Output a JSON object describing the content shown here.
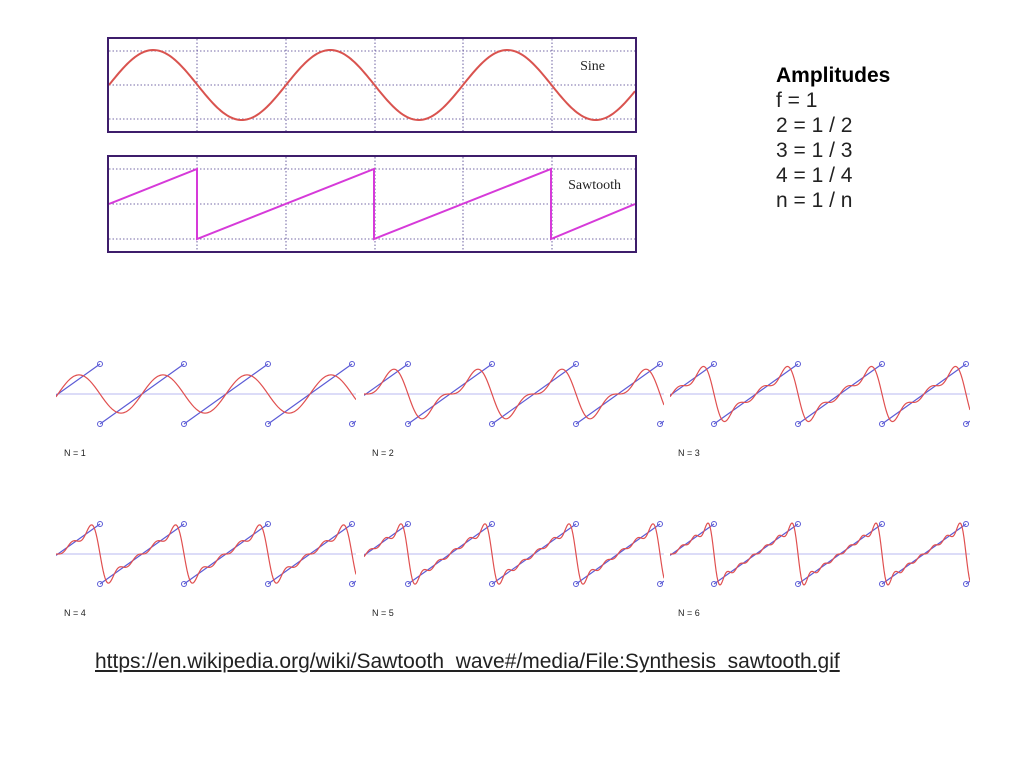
{
  "top_waves": {
    "sine": {
      "label": "Sine",
      "color": "#d9534f"
    },
    "sawtooth": {
      "label": "Sawtooth",
      "color": "#d63ad9"
    }
  },
  "amplitudes": {
    "heading": "Amplitudes",
    "lines": [
      "f = 1",
      "2 = 1 / 2",
      "3 = 1 / 3",
      "4 = 1 / 4",
      "n = 1 / n"
    ]
  },
  "synthesis": {
    "approx_color": "#e05050",
    "target_color": "#5b5bd6",
    "axis_color": "#b8b8f0",
    "panels": [
      {
        "label": "N = 1",
        "n": 1
      },
      {
        "label": "N = 2",
        "n": 2
      },
      {
        "label": "N = 3",
        "n": 3
      },
      {
        "label": "N = 4",
        "n": 4
      },
      {
        "label": "N = 5",
        "n": 5
      },
      {
        "label": "N = 6",
        "n": 6
      }
    ]
  },
  "source_link": "https://en.wikipedia.org/wiki/Sawtooth_wave#/media/File:Synthesis_sawtooth.gif"
}
